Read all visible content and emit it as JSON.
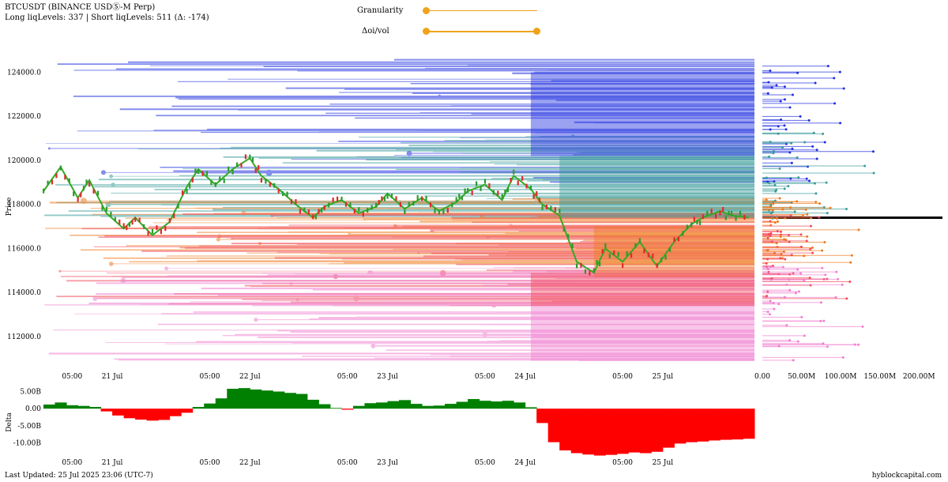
{
  "header": {
    "title": "BTCUSDT (BINANCE USDⓈ-M Perp)",
    "subtitle": "Long liqLevels: 337 | Short liqLevels: 511 (Δ: -174)"
  },
  "controls": {
    "granularity_label": "Granularity",
    "oi_vol_label": "Δoi/vol",
    "accent": "#f0a21a",
    "granularity_value": 0,
    "oi_vol_range": [
      0,
      1
    ]
  },
  "footer": {
    "last_updated": "Last Updated: 25 Jul 2025 23:06 (UTC-7)",
    "brand": "hyblockcapital.com"
  },
  "chart_data": [
    {
      "type": "line",
      "ylabel": "Price",
      "ylim": [
        110600,
        125200
      ],
      "y_ticks": [
        "124000.0",
        "122000.0",
        "120000.0",
        "118000.0",
        "116000.0",
        "114000.0",
        "112000.0"
      ],
      "y_tick_values": [
        124000,
        122000,
        120000,
        118000,
        116000,
        114000,
        112000
      ],
      "x_tick_labels": [
        "05:00",
        "21 Jul",
        "05:00",
        "22 Jul",
        "05:00",
        "23 Jul",
        "05:00",
        "24 Jul",
        "05:00",
        "25 Jul"
      ],
      "x_range_hours": [
        0,
        124
      ],
      "x_tick_hours": [
        5,
        12,
        29,
        36,
        53,
        60,
        77,
        84,
        101,
        108
      ],
      "series": [
        {
          "x": [
            0,
            3,
            6,
            8,
            11,
            14,
            16,
            19,
            22,
            25,
            27,
            30,
            33,
            36,
            38,
            41,
            44,
            47,
            49,
            52,
            55,
            58,
            60,
            63,
            66,
            69,
            72,
            74,
            77,
            80,
            82,
            85,
            87,
            90,
            93,
            96,
            98,
            101,
            104,
            107,
            110,
            113,
            115,
            118,
            120,
            123
          ],
          "values": [
            118600,
            119700,
            118300,
            119100,
            117600,
            116900,
            117400,
            116600,
            117200,
            118800,
            119600,
            118900,
            119600,
            120100,
            119300,
            118700,
            118000,
            117400,
            117900,
            118200,
            117600,
            117900,
            118500,
            117800,
            118300,
            117700,
            118100,
            118600,
            118900,
            118200,
            119300,
            118700,
            118000,
            117500,
            115400,
            114900,
            116000,
            115400,
            116300,
            115200,
            116300,
            117100,
            117400,
            117700,
            117500,
            117400
          ]
        }
      ],
      "liquidation_bands": [
        {
          "name": "short_levels",
          "color": "#1f2fe0",
          "range": [
            119000,
            124600
          ]
        },
        {
          "name": "short_levels_mid",
          "color": "#3a9c9a",
          "range": [
            117300,
            121300
          ]
        },
        {
          "name": "long_levels",
          "color": "#f07a1e",
          "range": [
            115300,
            118300
          ]
        },
        {
          "name": "long_levels_low",
          "color": "#f24a5a",
          "range": [
            113400,
            117600
          ]
        },
        {
          "name": "long_levels_far",
          "color": "#f080d0",
          "range": [
            110900,
            115200
          ]
        }
      ],
      "current_price": 117400
    },
    {
      "type": "bar",
      "orientation": "horizontal",
      "x_ticks": [
        "0.00",
        "50.00M",
        "100.00M",
        "150.00M",
        "200.00M"
      ],
      "x_tick_values": [
        0,
        50,
        100,
        150,
        200
      ],
      "xlim": [
        0,
        230
      ]
    },
    {
      "type": "area",
      "ylabel": "Delta",
      "y_ticks": [
        "5.00B",
        "0.00",
        "-5.00B",
        "-10.00B"
      ],
      "y_tick_values": [
        5,
        0,
        -5,
        -10
      ],
      "ylim": [
        -14.5,
        6.5
      ],
      "x_tick_labels": [
        "05:00",
        "21 Jul",
        "05:00",
        "22 Jul",
        "05:00",
        "23 Jul",
        "05:00",
        "24 Jul",
        "05:00",
        "25 Jul"
      ],
      "x_range_hours": [
        0,
        124
      ],
      "x_tick_hours": [
        5,
        12,
        29,
        36,
        53,
        60,
        77,
        84,
        101,
        108
      ],
      "positive_color": "#008000",
      "negative_color": "#ff0000",
      "x": [
        0,
        2,
        4,
        6,
        8,
        10,
        12,
        14,
        16,
        18,
        20,
        22,
        24,
        26,
        28,
        30,
        32,
        34,
        36,
        38,
        40,
        42,
        44,
        46,
        48,
        50,
        52,
        54,
        56,
        58,
        60,
        62,
        64,
        66,
        68,
        70,
        72,
        74,
        76,
        78,
        80,
        82,
        84,
        86,
        88,
        90,
        92,
        94,
        96,
        98,
        100,
        102,
        104,
        106,
        108,
        110,
        112,
        114,
        116,
        118,
        120,
        122,
        124
      ],
      "values": [
        1.2,
        1.8,
        1.0,
        0.8,
        0.5,
        -0.8,
        -2.0,
        -2.8,
        -3.2,
        -3.5,
        -3.3,
        -2.2,
        -1.2,
        0.5,
        1.5,
        3.0,
        5.8,
        6.0,
        5.6,
        5.3,
        5.0,
        4.6,
        4.3,
        2.6,
        1.3,
        0.2,
        -0.3,
        0.8,
        1.6,
        1.8,
        2.2,
        2.5,
        1.4,
        0.8,
        0.9,
        1.4,
        2.0,
        2.8,
        2.3,
        2.1,
        2.3,
        1.8,
        0.4,
        -4.2,
        -9.8,
        -12.2,
        -13.0,
        -13.4,
        -13.7,
        -13.5,
        -13.2,
        -12.8,
        -13.0,
        -12.6,
        -11.4,
        -10.2,
        -9.8,
        -9.6,
        -9.3,
        -9.1,
        -9.0,
        -8.8,
        -8.9
      ]
    }
  ]
}
